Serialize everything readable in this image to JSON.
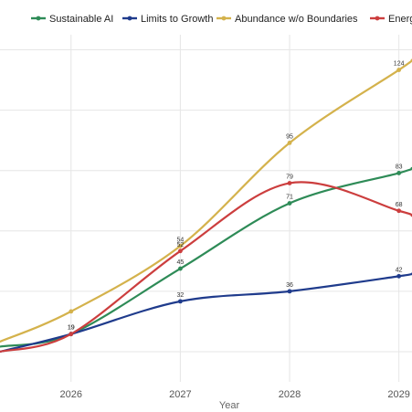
{
  "chart_data": {
    "type": "line",
    "xlabel": "Year",
    "ylabel": "",
    "title": "",
    "x_ticks": [
      "2026",
      "2027",
      "2028",
      "2029"
    ],
    "xlim": [
      2025.35,
      2029.12
    ],
    "ylim": [
      0,
      138
    ],
    "grid": true,
    "legend_position": "top",
    "series": [
      {
        "name": "Sustainable AI",
        "color": "#2e8b57",
        "points": [
          [
            2025.35,
            14
          ],
          [
            2026,
            19
          ],
          [
            2027,
            45
          ],
          [
            2028,
            71
          ],
          [
            2029,
            83
          ],
          [
            2029.12,
            85
          ]
        ],
        "labels": [
          null,
          "19",
          "45",
          "71",
          "83",
          null
        ]
      },
      {
        "name": "Limits to Growth",
        "color": "#1f3b8c",
        "points": [
          [
            2025.35,
            12
          ],
          [
            2026,
            19
          ],
          [
            2027,
            32
          ],
          [
            2028,
            36
          ],
          [
            2029,
            42
          ],
          [
            2029.12,
            43
          ]
        ],
        "labels": [
          null,
          "19",
          "32",
          "36",
          "42",
          null
        ]
      },
      {
        "name": "Abundance w/o Boundaries",
        "color": "#d4b24c",
        "points": [
          [
            2025.35,
            16
          ],
          [
            2026,
            28
          ],
          [
            2027,
            54
          ],
          [
            2028,
            95
          ],
          [
            2029,
            124
          ],
          [
            2029.12,
            128
          ]
        ],
        "labels": [
          null,
          null,
          "54",
          "95",
          "124",
          null
        ]
      },
      {
        "name": "Energy",
        "color": "#cc3e3e",
        "points": [
          [
            2025.35,
            12
          ],
          [
            2026,
            19
          ],
          [
            2027,
            52
          ],
          [
            2028,
            79
          ],
          [
            2029,
            68
          ],
          [
            2029.12,
            66
          ]
        ],
        "labels": [
          null,
          null,
          "52",
          "79",
          "68",
          null
        ]
      }
    ]
  }
}
